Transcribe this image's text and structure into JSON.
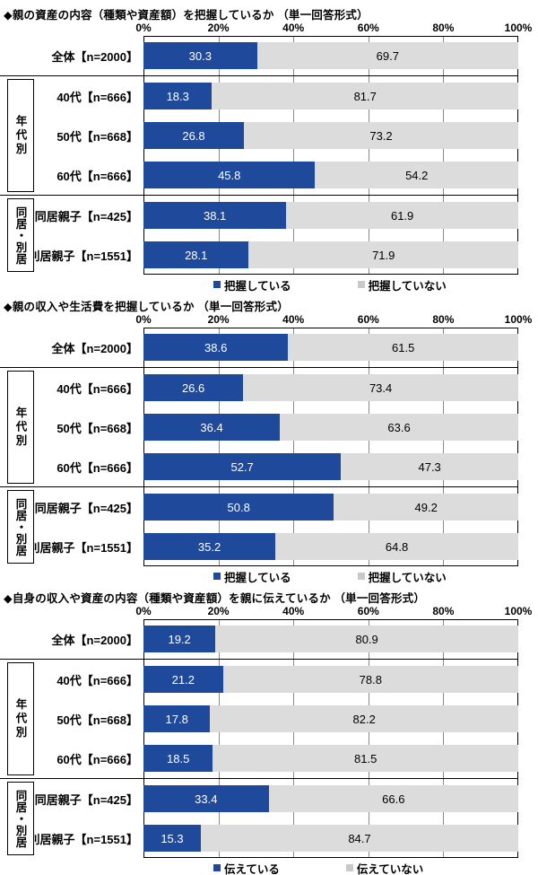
{
  "colors": {
    "bar_yes": "#1F4A9C",
    "bar_no": "#DCDCDC",
    "legend_no_swatch": "#C9C9C9",
    "plot_border": "#000000",
    "gridline": "#8A8A8A"
  },
  "chart_data": [
    {
      "type": "bar",
      "orientation": "horizontal",
      "stacked": true,
      "title": "◆親の資産の内容（種類や資産額）を把握しているか （単一回答形式）",
      "xlim": [
        0,
        100
      ],
      "x_ticks": [
        "0%",
        "20%",
        "40%",
        "60%",
        "80%",
        "100%"
      ],
      "grid": true,
      "legend_position": "bottom",
      "categories": [
        "全体【n=2000】",
        "40代【n=666】",
        "50代【n=668】",
        "60代【n=666】",
        "同居親子【n=425】",
        "別居親子【n=1551】"
      ],
      "group_labels": [
        {
          "label": "年代別",
          "category_indexes": [
            1,
            2,
            3
          ]
        },
        {
          "label": "同居・別居",
          "category_indexes": [
            4,
            5
          ]
        }
      ],
      "series": [
        {
          "name": "把握している",
          "color": "#1F4A9C",
          "values": [
            30.3,
            18.3,
            26.8,
            45.8,
            38.1,
            28.1
          ]
        },
        {
          "name": "把握していない",
          "color": "#DCDCDC",
          "values": [
            69.7,
            81.7,
            73.2,
            54.2,
            61.9,
            71.9
          ]
        }
      ]
    },
    {
      "type": "bar",
      "orientation": "horizontal",
      "stacked": true,
      "title": "◆親の収入や生活費を把握しているか （単一回答形式）",
      "xlim": [
        0,
        100
      ],
      "x_ticks": [
        "0%",
        "20%",
        "40%",
        "60%",
        "80%",
        "100%"
      ],
      "grid": true,
      "legend_position": "bottom",
      "categories": [
        "全体【n=2000】",
        "40代【n=666】",
        "50代【n=668】",
        "60代【n=666】",
        "同居親子【n=425】",
        "別居親子【n=1551】"
      ],
      "group_labels": [
        {
          "label": "年代別",
          "category_indexes": [
            1,
            2,
            3
          ]
        },
        {
          "label": "同居・別居",
          "category_indexes": [
            4,
            5
          ]
        }
      ],
      "series": [
        {
          "name": "把握している",
          "color": "#1F4A9C",
          "values": [
            38.6,
            26.6,
            36.4,
            52.7,
            50.8,
            35.2
          ]
        },
        {
          "name": "把握していない",
          "color": "#DCDCDC",
          "values": [
            61.5,
            73.4,
            63.6,
            47.3,
            49.2,
            64.8
          ]
        }
      ]
    },
    {
      "type": "bar",
      "orientation": "horizontal",
      "stacked": true,
      "title": "◆自身の収入や資産の内容（種類や資産額）を親に伝えているか （単一回答形式）",
      "xlim": [
        0,
        100
      ],
      "x_ticks": [
        "0%",
        "20%",
        "40%",
        "60%",
        "80%",
        "100%"
      ],
      "grid": true,
      "legend_position": "bottom",
      "categories": [
        "全体【n=2000】",
        "40代【n=666】",
        "50代【n=668】",
        "60代【n=666】",
        "同居親子【n=425】",
        "別居親子【n=1551】"
      ],
      "group_labels": [
        {
          "label": "年代別",
          "category_indexes": [
            1,
            2,
            3
          ]
        },
        {
          "label": "同居・別居",
          "category_indexes": [
            4,
            5
          ]
        }
      ],
      "series": [
        {
          "name": "伝えている",
          "color": "#1F4A9C",
          "values": [
            19.2,
            21.2,
            17.8,
            18.5,
            33.4,
            15.3
          ]
        },
        {
          "name": "伝えていない",
          "color": "#DCDCDC",
          "values": [
            80.9,
            78.8,
            82.2,
            81.5,
            66.6,
            84.7
          ]
        }
      ]
    }
  ]
}
